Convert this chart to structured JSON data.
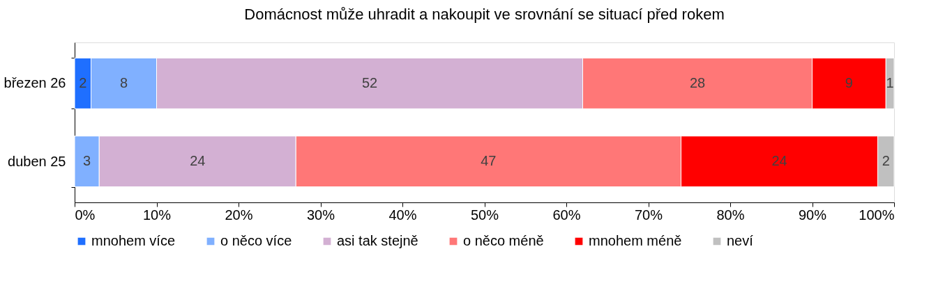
{
  "chart_data": {
    "type": "bar",
    "orientation": "horizontal",
    "stacked": true,
    "title": "Domácnost může uhradit a nakoupit ve srovnání se situací před rokem",
    "categories": [
      "březen 26",
      "duben 25"
    ],
    "series": [
      {
        "name": "mnohem více",
        "color": "#1f6fff",
        "values": [
          2,
          null
        ]
      },
      {
        "name": "o něco více",
        "color": "#80b0ff",
        "values": [
          8,
          3
        ]
      },
      {
        "name": "asi tak stejně",
        "color": "#d3b0d3",
        "values": [
          52,
          24
        ]
      },
      {
        "name": "o něco méně",
        "color": "#ff7777",
        "values": [
          28,
          47
        ]
      },
      {
        "name": "mnohem méně",
        "color": "#ff0000",
        "values": [
          9,
          24
        ]
      },
      {
        "name": "neví",
        "color": "#c0c0c0",
        "values": [
          1,
          2
        ]
      }
    ],
    "xlim": [
      0,
      100
    ],
    "xticks": [
      {
        "value": 0,
        "label": "0%"
      },
      {
        "value": 10,
        "label": "10%"
      },
      {
        "value": 20,
        "label": "20%"
      },
      {
        "value": 30,
        "label": "30%"
      },
      {
        "value": 40,
        "label": "40%"
      },
      {
        "value": 50,
        "label": "50%"
      },
      {
        "value": 60,
        "label": "60%"
      },
      {
        "value": 70,
        "label": "70%"
      },
      {
        "value": 80,
        "label": "80%"
      },
      {
        "value": 90,
        "label": "90%"
      },
      {
        "value": 100,
        "label": "100%"
      }
    ],
    "data_labels": true,
    "grid": false,
    "legend": "bottom"
  }
}
